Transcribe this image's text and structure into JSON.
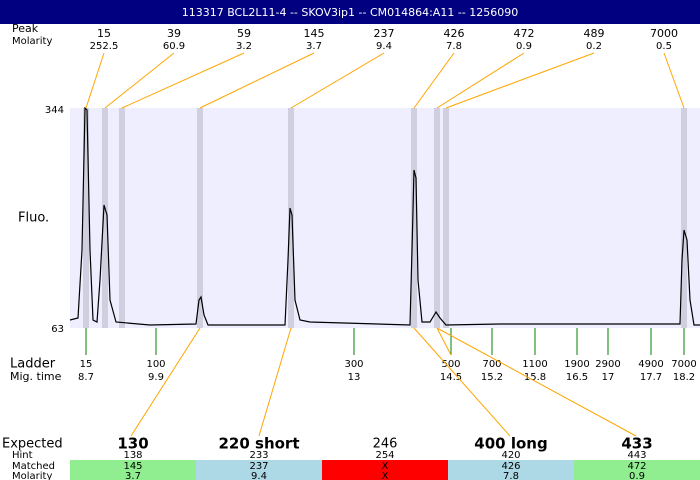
{
  "header": {
    "title": "113317  BCL2L11-4 -- SKOV3ip1 -- CM014864:A11 -- 1256090"
  },
  "top_rows": {
    "size_label": "Peak",
    "molarity_label": "Molarity"
  },
  "peaks": [
    {
      "size": "15",
      "molarity": "252.5"
    },
    {
      "size": "39",
      "molarity": "60.9"
    },
    {
      "size": "59",
      "molarity": "3.2"
    },
    {
      "size": "145",
      "molarity": "3.7"
    },
    {
      "size": "237",
      "molarity": "9.4"
    },
    {
      "size": "426",
      "molarity": "7.8"
    },
    {
      "size": "472",
      "molarity": "0.9"
    },
    {
      "size": "489",
      "molarity": "0.2"
    },
    {
      "size": "7000",
      "molarity": "0.5"
    }
  ],
  "plot": {
    "y_label": "Fluo.",
    "y_top": "344",
    "y_bottom": "63"
  },
  "ladder": {
    "label": "Ladder",
    "time_label": "Mig. time",
    "items": [
      {
        "size": "15",
        "time": "8.7"
      },
      {
        "size": "100",
        "time": "9.9"
      },
      {
        "size": "300",
        "time": "13"
      },
      {
        "size": "500",
        "time": "14.5"
      },
      {
        "size": "700",
        "time": "15.2"
      },
      {
        "size": "1100",
        "time": "15.8"
      },
      {
        "size": "1900",
        "time": "16.5"
      },
      {
        "size": "2900",
        "time": "17"
      },
      {
        "size": "4900",
        "time": "17.7"
      },
      {
        "size": "7000",
        "time": "18.2"
      }
    ]
  },
  "table": {
    "row_labels": [
      "Expected",
      "Hint",
      "Matched",
      "Molarity"
    ],
    "columns": [
      {
        "expected": "130",
        "hint": "138",
        "matched": "145",
        "molarity": "3.7",
        "color": "#90ee90"
      },
      {
        "expected": "220 short",
        "hint": "233",
        "matched": "237",
        "molarity": "9.4",
        "color": "#add8e6"
      },
      {
        "expected": "246",
        "hint": "254",
        "matched": "X",
        "molarity": "X",
        "color": "#ff0000"
      },
      {
        "expected": "400 long",
        "hint": "420",
        "matched": "426",
        "molarity": "7.8",
        "color": "#add8e6"
      },
      {
        "expected": "433",
        "hint": "443",
        "matched": "472",
        "molarity": "0.9",
        "color": "#90ee90"
      }
    ]
  }
}
